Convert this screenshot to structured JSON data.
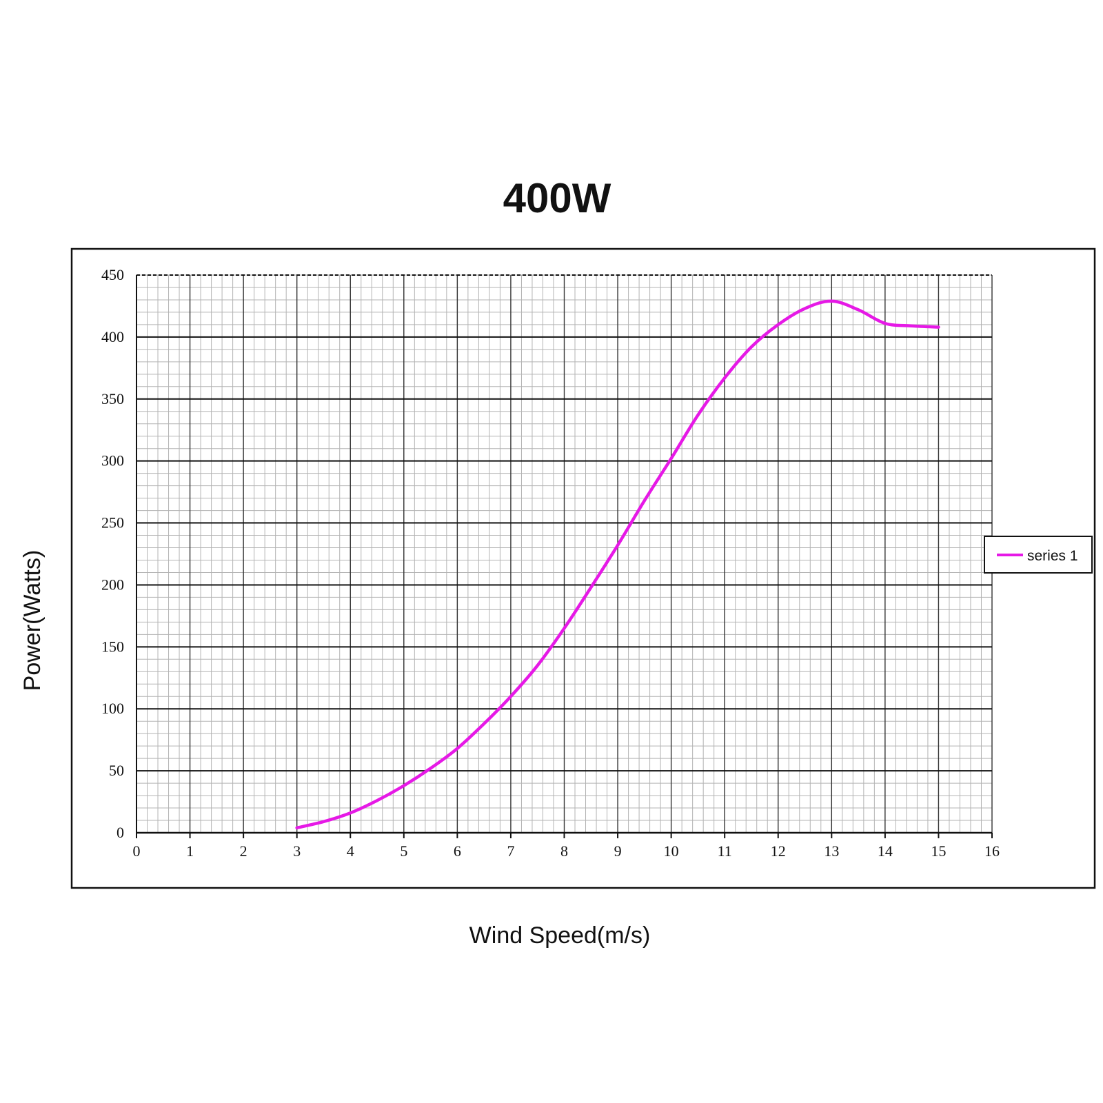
{
  "chart_data": {
    "type": "line",
    "title": "400W",
    "xlabel": "Wind Speed(m/s)",
    "ylabel": "Power(Watts)",
    "xlim": [
      0,
      16
    ],
    "ylim": [
      0,
      450
    ],
    "x_ticks": [
      0,
      1,
      2,
      3,
      4,
      5,
      6,
      7,
      8,
      9,
      10,
      11,
      12,
      13,
      14,
      15,
      16
    ],
    "y_ticks": [
      0,
      50,
      100,
      150,
      200,
      250,
      300,
      350,
      400,
      450
    ],
    "x_tick_labels": [
      "0",
      "1",
      "2",
      "3",
      "4",
      "5",
      "6",
      "7",
      "8",
      "9",
      "10",
      "11",
      "12",
      "13",
      "14",
      "15",
      "16"
    ],
    "y_tick_labels": [
      "0",
      "50",
      "100",
      "150",
      "200",
      "250",
      "300",
      "350",
      "400",
      "450"
    ],
    "grid": true,
    "legend_position": "right",
    "line_color": "#e619e6",
    "series": [
      {
        "name": "series 1",
        "x": [
          3,
          3.5,
          4,
          4.5,
          5,
          5.5,
          6,
          6.5,
          7,
          7.5,
          8,
          8.5,
          9,
          9.5,
          10,
          10.5,
          11,
          11.5,
          12,
          12.5,
          13,
          13.5,
          14,
          14.5,
          15
        ],
        "values": [
          4,
          9,
          16,
          26,
          38,
          52,
          68,
          88,
          110,
          135,
          165,
          198,
          232,
          268,
          302,
          337,
          367,
          392,
          410,
          423,
          429,
          422,
          411,
          409,
          408
        ]
      }
    ]
  }
}
